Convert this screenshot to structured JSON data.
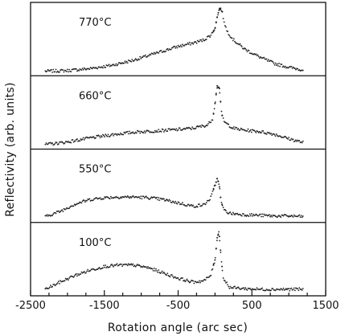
{
  "chart_data": {
    "type": "scatter",
    "title": "",
    "xlabel": "Rotation angle (arc sec)",
    "ylabel": "Reflectivity (arb. units)",
    "xlim": [
      -2500,
      1500
    ],
    "xticks": [
      -2500,
      -1500,
      -500,
      500,
      1500
    ],
    "xtick_labels": [
      "-2500",
      "-1500",
      "-500",
      "500",
      "1500"
    ],
    "ylim": [
      0,
      1
    ],
    "grid": false,
    "legend": "none",
    "panels": [
      {
        "label": "770°C",
        "profile": [
          [
            -2300,
            0.02
          ],
          [
            -2000,
            0.03
          ],
          [
            -1700,
            0.06
          ],
          [
            -1400,
            0.11
          ],
          [
            -1100,
            0.19
          ],
          [
            -900,
            0.26
          ],
          [
            -700,
            0.33
          ],
          [
            -500,
            0.4
          ],
          [
            -300,
            0.45
          ],
          [
            -150,
            0.5
          ],
          [
            -50,
            0.58
          ],
          [
            0,
            0.68
          ],
          [
            30,
            0.85
          ],
          [
            60,
            0.98
          ],
          [
            90,
            0.96
          ],
          [
            120,
            0.8
          ],
          [
            160,
            0.64
          ],
          [
            250,
            0.5
          ],
          [
            400,
            0.36
          ],
          [
            600,
            0.24
          ],
          [
            800,
            0.14
          ],
          [
            1000,
            0.08
          ],
          [
            1200,
            0.04
          ]
        ]
      },
      {
        "label": "660°C",
        "profile": [
          [
            -2300,
            0.02
          ],
          [
            -2000,
            0.06
          ],
          [
            -1700,
            0.12
          ],
          [
            -1400,
            0.17
          ],
          [
            -1100,
            0.21
          ],
          [
            -800,
            0.23
          ],
          [
            -500,
            0.25
          ],
          [
            -300,
            0.27
          ],
          [
            -100,
            0.32
          ],
          [
            -30,
            0.42
          ],
          [
            0,
            0.65
          ],
          [
            30,
            0.92
          ],
          [
            60,
            0.88
          ],
          [
            90,
            0.48
          ],
          [
            130,
            0.36
          ],
          [
            250,
            0.27
          ],
          [
            400,
            0.24
          ],
          [
            600,
            0.22
          ],
          [
            800,
            0.18
          ],
          [
            1000,
            0.11
          ],
          [
            1200,
            0.05
          ]
        ]
      },
      {
        "label": "550°C",
        "profile": [
          [
            -2300,
            0.04
          ],
          [
            -2100,
            0.12
          ],
          [
            -1900,
            0.23
          ],
          [
            -1700,
            0.3
          ],
          [
            -1500,
            0.33
          ],
          [
            -1300,
            0.34
          ],
          [
            -1100,
            0.34
          ],
          [
            -900,
            0.33
          ],
          [
            -700,
            0.3
          ],
          [
            -500,
            0.25
          ],
          [
            -300,
            0.2
          ],
          [
            -150,
            0.22
          ],
          [
            -60,
            0.32
          ],
          [
            0,
            0.52
          ],
          [
            30,
            0.62
          ],
          [
            55,
            0.55
          ],
          [
            80,
            0.28
          ],
          [
            120,
            0.14
          ],
          [
            200,
            0.09
          ],
          [
            400,
            0.07
          ],
          [
            600,
            0.06
          ],
          [
            800,
            0.05
          ],
          [
            1000,
            0.05
          ],
          [
            1200,
            0.04
          ]
        ]
      },
      {
        "label": "100°C",
        "profile": [
          [
            -2300,
            0.05
          ],
          [
            -2100,
            0.16
          ],
          [
            -1900,
            0.26
          ],
          [
            -1700,
            0.34
          ],
          [
            -1500,
            0.4
          ],
          [
            -1300,
            0.42
          ],
          [
            -1100,
            0.42
          ],
          [
            -900,
            0.38
          ],
          [
            -700,
            0.3
          ],
          [
            -500,
            0.22
          ],
          [
            -300,
            0.16
          ],
          [
            -150,
            0.18
          ],
          [
            -60,
            0.26
          ],
          [
            0,
            0.5
          ],
          [
            30,
            0.84
          ],
          [
            55,
            0.93
          ],
          [
            80,
            0.58
          ],
          [
            110,
            0.22
          ],
          [
            200,
            0.08
          ],
          [
            400,
            0.06
          ],
          [
            600,
            0.05
          ],
          [
            800,
            0.05
          ],
          [
            1000,
            0.05
          ],
          [
            1200,
            0.05
          ]
        ]
      }
    ]
  }
}
